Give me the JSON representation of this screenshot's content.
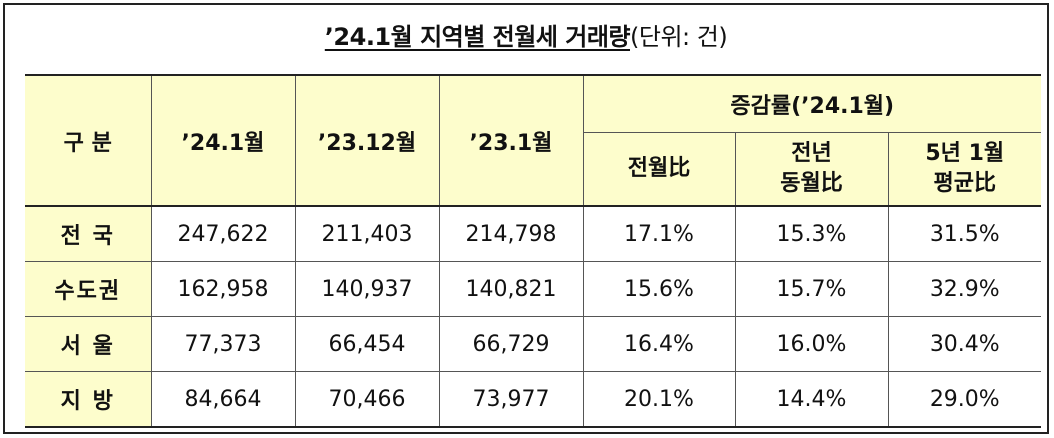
{
  "title": {
    "main": "’24.1월 지역별 전월세 거래량",
    "unit": "(단위: 건)"
  },
  "header": {
    "category": "구 분",
    "col_2401": "’24.1월",
    "col_2312": "’23.12월",
    "col_2301": "’23.1월",
    "change_group": "증감률(’24.1월)",
    "mom": "전월比",
    "yoy_line1": "전년",
    "yoy_line2": "동월比",
    "avg5_line1": "5년 1월",
    "avg5_line2": "평균比"
  },
  "rows": [
    {
      "label": "전 국",
      "v2401": "247,622",
      "v2312": "211,403",
      "v2301": "214,798",
      "mom": "17.1%",
      "yoy": "15.3%",
      "avg5": "31.5%"
    },
    {
      "label": "수도권",
      "v2401": "162,958",
      "v2312": "140,937",
      "v2301": "140,821",
      "mom": "15.6%",
      "yoy": "15.7%",
      "avg5": "32.9%"
    },
    {
      "label": "서 울",
      "v2401": "77,373",
      "v2312": "66,454",
      "v2301": "66,729",
      "mom": "16.4%",
      "yoy": "16.0%",
      "avg5": "30.4%"
    },
    {
      "label": "지 방",
      "v2401": "84,664",
      "v2312": "70,466",
      "v2301": "73,977",
      "mom": "20.1%",
      "yoy": "14.4%",
      "avg5": "29.0%"
    }
  ],
  "colors": {
    "header_bg": "#fdfdcc",
    "border": "#222222"
  }
}
